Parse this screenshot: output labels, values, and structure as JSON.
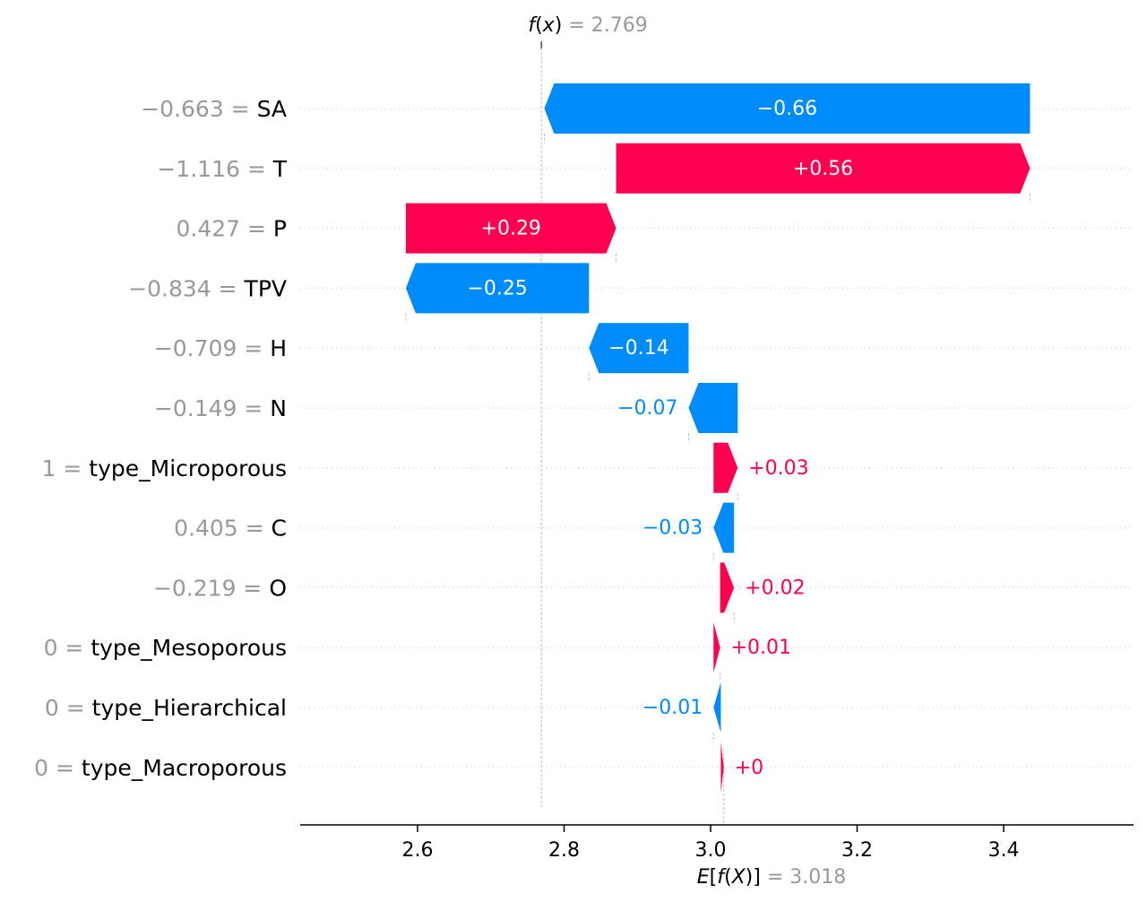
{
  "chart_data": {
    "type": "waterfall",
    "fx_label": "f(x)",
    "fx_value": 2.769,
    "fx_value_text": "2.769",
    "ex_label": "E[f(X)]",
    "ex_value": 3.018,
    "ex_value_text": "3.018",
    "xlim": [
      2.45,
      3.57
    ],
    "xticks": [
      2.6,
      2.8,
      3.0,
      3.2,
      3.4
    ],
    "xtick_labels": [
      "2.6",
      "2.8",
      "3.0",
      "3.2",
      "3.4"
    ],
    "features": [
      {
        "feature_value": "−0.663",
        "feature_name": "SA",
        "start": 3.436,
        "shap": -0.663,
        "label": "−0.66"
      },
      {
        "feature_value": "−1.116",
        "feature_name": "T",
        "start": 2.871,
        "shap": 0.565,
        "label": "+0.56"
      },
      {
        "feature_value": "0.427",
        "feature_name": "P",
        "start": 2.584,
        "shap": 0.287,
        "label": "+0.29"
      },
      {
        "feature_value": "−0.834",
        "feature_name": "TPV",
        "start": 2.834,
        "shap": -0.25,
        "label": "−0.25"
      },
      {
        "feature_value": "−0.709",
        "feature_name": "H",
        "start": 2.97,
        "shap": -0.136,
        "label": "−0.14"
      },
      {
        "feature_value": "−0.149",
        "feature_name": "N",
        "start": 3.037,
        "shap": -0.067,
        "label": "−0.07"
      },
      {
        "feature_value": "1",
        "feature_name": "type_Microporous",
        "start": 3.004,
        "shap": 0.033,
        "label": "+0.03"
      },
      {
        "feature_value": "0.405",
        "feature_name": "C",
        "start": 3.032,
        "shap": -0.028,
        "label": "−0.03"
      },
      {
        "feature_value": "−0.219",
        "feature_name": "O",
        "start": 3.013,
        "shap": 0.019,
        "label": "+0.02"
      },
      {
        "feature_value": "0",
        "feature_name": "type_Mesoporous",
        "start": 3.004,
        "shap": 0.009,
        "label": "+0.01"
      },
      {
        "feature_value": "0",
        "feature_name": "type_Hierarchical",
        "start": 3.014,
        "shap": -0.01,
        "label": "−0.01"
      },
      {
        "feature_value": "0",
        "feature_name": "type_Macroporous",
        "start": 3.014,
        "shap": 0.004,
        "label": "+0"
      }
    ],
    "colors": {
      "positive": "#ff0051",
      "negative": "#008bfb",
      "value_grey": "#999999",
      "text": "#000000"
    }
  }
}
